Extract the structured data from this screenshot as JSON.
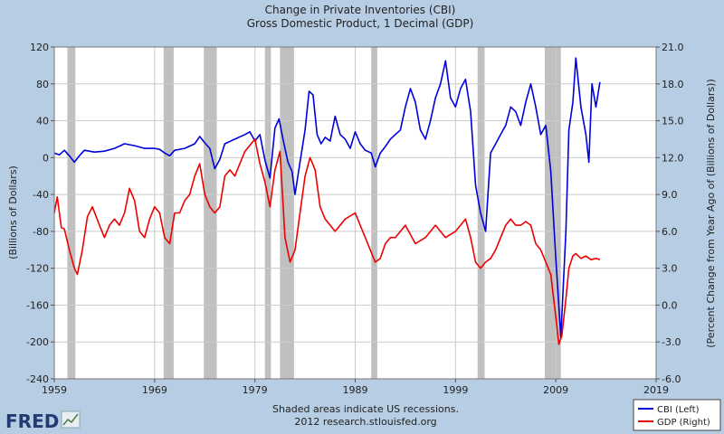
{
  "chart_data": {
    "type": "line",
    "title": "Change in Private Inventories (CBI)",
    "subtitle": "Gross Domestic Product, 1 Decimal (GDP)",
    "ylabel_left": "(Billions of Dollars)",
    "ylabel_right": "(Percent Change from Year Ago of (Billions of Dollars))",
    "xlim": [
      1959,
      2019
    ],
    "ylim_left": [
      -240,
      120
    ],
    "ylim_right": [
      -6.0,
      21.0
    ],
    "x_ticks": [
      "1959",
      "1969",
      "1979",
      "1989",
      "1999",
      "2009",
      "2019"
    ],
    "y_ticks_left": [
      "120",
      "80",
      "40",
      "0",
      "-40",
      "-80",
      "-120",
      "-160",
      "-200",
      "-240"
    ],
    "y_ticks_right": [
      "21.0",
      "18.0",
      "15.0",
      "12.0",
      "9.0",
      "6.0",
      "3.0",
      "0.0",
      "-3.0",
      "-6.0"
    ],
    "recessions": [
      [
        1960.3,
        1961.1
      ],
      [
        1969.9,
        1970.9
      ],
      [
        1973.9,
        1975.2
      ],
      [
        1980.0,
        1980.6
      ],
      [
        1981.5,
        1982.9
      ],
      [
        1990.6,
        1991.2
      ],
      [
        2001.2,
        2001.9
      ],
      [
        2007.9,
        2009.5
      ]
    ],
    "series": [
      {
        "name": "CBI (Left)",
        "color": "#0000dd",
        "points": [
          [
            1959.0,
            5
          ],
          [
            1959.5,
            3
          ],
          [
            1960.0,
            8
          ],
          [
            1960.5,
            2
          ],
          [
            1961.0,
            -5
          ],
          [
            1961.5,
            2
          ],
          [
            1962.0,
            8
          ],
          [
            1963.0,
            6
          ],
          [
            1964.0,
            7
          ],
          [
            1965.0,
            10
          ],
          [
            1966.0,
            15
          ],
          [
            1967.0,
            13
          ],
          [
            1968.0,
            10
          ],
          [
            1969.0,
            10
          ],
          [
            1969.5,
            9
          ],
          [
            1970.0,
            5
          ],
          [
            1970.5,
            2
          ],
          [
            1971.0,
            8
          ],
          [
            1972.0,
            10
          ],
          [
            1973.0,
            15
          ],
          [
            1973.5,
            23
          ],
          [
            1974.0,
            16
          ],
          [
            1974.5,
            10
          ],
          [
            1975.0,
            -12
          ],
          [
            1975.5,
            -2
          ],
          [
            1976.0,
            15
          ],
          [
            1977.0,
            20
          ],
          [
            1978.0,
            25
          ],
          [
            1978.5,
            28
          ],
          [
            1979.0,
            18
          ],
          [
            1979.5,
            25
          ],
          [
            1980.0,
            -3
          ],
          [
            1980.5,
            -22
          ],
          [
            1981.0,
            32
          ],
          [
            1981.4,
            42
          ],
          [
            1981.8,
            20
          ],
          [
            1982.3,
            -5
          ],
          [
            1982.7,
            -15
          ],
          [
            1983.0,
            -40
          ],
          [
            1983.5,
            -5
          ],
          [
            1984.0,
            30
          ],
          [
            1984.4,
            72
          ],
          [
            1984.8,
            68
          ],
          [
            1985.2,
            25
          ],
          [
            1985.6,
            15
          ],
          [
            1986.0,
            22
          ],
          [
            1986.5,
            18
          ],
          [
            1987.0,
            45
          ],
          [
            1987.5,
            25
          ],
          [
            1988.0,
            20
          ],
          [
            1988.5,
            10
          ],
          [
            1989.0,
            28
          ],
          [
            1989.5,
            15
          ],
          [
            1990.0,
            8
          ],
          [
            1990.6,
            5
          ],
          [
            1991.0,
            -10
          ],
          [
            1991.5,
            5
          ],
          [
            1992.0,
            12
          ],
          [
            1992.5,
            20
          ],
          [
            1993.0,
            25
          ],
          [
            1993.5,
            30
          ],
          [
            1994.0,
            55
          ],
          [
            1994.5,
            75
          ],
          [
            1995.0,
            60
          ],
          [
            1995.5,
            30
          ],
          [
            1996.0,
            20
          ],
          [
            1996.5,
            40
          ],
          [
            1997.0,
            65
          ],
          [
            1997.5,
            80
          ],
          [
            1998.0,
            105
          ],
          [
            1998.5,
            65
          ],
          [
            1999.0,
            55
          ],
          [
            1999.5,
            75
          ],
          [
            2000.0,
            85
          ],
          [
            2000.5,
            50
          ],
          [
            2001.0,
            -30
          ],
          [
            2001.5,
            -60
          ],
          [
            2002.0,
            -80
          ],
          [
            2002.5,
            5
          ],
          [
            2003.0,
            15
          ],
          [
            2003.5,
            25
          ],
          [
            2004.0,
            35
          ],
          [
            2004.5,
            55
          ],
          [
            2005.0,
            50
          ],
          [
            2005.5,
            35
          ],
          [
            2006.0,
            60
          ],
          [
            2006.5,
            80
          ],
          [
            2007.0,
            55
          ],
          [
            2007.5,
            25
          ],
          [
            2008.0,
            35
          ],
          [
            2008.5,
            -15
          ],
          [
            2009.0,
            -110
          ],
          [
            2009.5,
            -195
          ],
          [
            2010.0,
            -80
          ],
          [
            2010.3,
            30
          ],
          [
            2010.7,
            60
          ],
          [
            2011.0,
            108
          ],
          [
            2011.5,
            55
          ],
          [
            2012.0,
            25
          ],
          [
            2012.3,
            -5
          ],
          [
            2012.6,
            80
          ],
          [
            2013.0,
            55
          ],
          [
            2013.4,
            82
          ]
        ]
      },
      {
        "name": "GDP (Right)",
        "color": "#ee0000",
        "points": [
          [
            1959.0,
            7.5
          ],
          [
            1959.3,
            8.8
          ],
          [
            1959.7,
            6.3
          ],
          [
            1960.0,
            6.2
          ],
          [
            1960.5,
            4.5
          ],
          [
            1961.0,
            3.0
          ],
          [
            1961.3,
            2.5
          ],
          [
            1961.8,
            4.5
          ],
          [
            1962.3,
            7.2
          ],
          [
            1962.8,
            8.0
          ],
          [
            1963.5,
            6.5
          ],
          [
            1964.0,
            5.5
          ],
          [
            1964.5,
            6.5
          ],
          [
            1965.0,
            7.0
          ],
          [
            1965.5,
            6.5
          ],
          [
            1966.0,
            7.5
          ],
          [
            1966.5,
            9.5
          ],
          [
            1967.0,
            8.5
          ],
          [
            1967.5,
            6.0
          ],
          [
            1968.0,
            5.5
          ],
          [
            1968.5,
            7.0
          ],
          [
            1969.0,
            8.0
          ],
          [
            1969.5,
            7.5
          ],
          [
            1970.0,
            5.5
          ],
          [
            1970.5,
            5.0
          ],
          [
            1971.0,
            7.5
          ],
          [
            1971.5,
            7.5
          ],
          [
            1972.0,
            8.5
          ],
          [
            1972.5,
            9.0
          ],
          [
            1973.0,
            10.5
          ],
          [
            1973.5,
            11.5
          ],
          [
            1974.0,
            9.0
          ],
          [
            1974.5,
            8.0
          ],
          [
            1975.0,
            7.5
          ],
          [
            1975.5,
            8.0
          ],
          [
            1976.0,
            10.5
          ],
          [
            1976.5,
            11.0
          ],
          [
            1977.0,
            10.5
          ],
          [
            1977.5,
            11.5
          ],
          [
            1978.0,
            12.5
          ],
          [
            1978.5,
            13.0
          ],
          [
            1979.0,
            13.5
          ],
          [
            1979.5,
            11.5
          ],
          [
            1980.0,
            10.0
          ],
          [
            1980.5,
            8.0
          ],
          [
            1981.0,
            11.0
          ],
          [
            1981.5,
            12.5
          ],
          [
            1982.0,
            5.5
          ],
          [
            1982.5,
            3.5
          ],
          [
            1983.0,
            4.5
          ],
          [
            1983.5,
            7.5
          ],
          [
            1984.0,
            10.5
          ],
          [
            1984.5,
            12.0
          ],
          [
            1985.0,
            11.0
          ],
          [
            1985.5,
            8.0
          ],
          [
            1986.0,
            7.0
          ],
          [
            1987.0,
            6.0
          ],
          [
            1988.0,
            7.0
          ],
          [
            1989.0,
            7.5
          ],
          [
            1989.5,
            6.5
          ],
          [
            1990.0,
            5.5
          ],
          [
            1990.5,
            4.5
          ],
          [
            1991.0,
            3.5
          ],
          [
            1991.5,
            3.8
          ],
          [
            1992.0,
            5.0
          ],
          [
            1992.5,
            5.5
          ],
          [
            1993.0,
            5.5
          ],
          [
            1994.0,
            6.5
          ],
          [
            1995.0,
            5.0
          ],
          [
            1996.0,
            5.5
          ],
          [
            1997.0,
            6.5
          ],
          [
            1998.0,
            5.5
          ],
          [
            1999.0,
            6.0
          ],
          [
            1999.5,
            6.5
          ],
          [
            2000.0,
            7.0
          ],
          [
            2000.5,
            5.5
          ],
          [
            2001.0,
            3.5
          ],
          [
            2001.5,
            3.0
          ],
          [
            2002.0,
            3.5
          ],
          [
            2002.5,
            3.8
          ],
          [
            2003.0,
            4.5
          ],
          [
            2003.5,
            5.5
          ],
          [
            2004.0,
            6.5
          ],
          [
            2004.5,
            7.0
          ],
          [
            2005.0,
            6.5
          ],
          [
            2005.5,
            6.5
          ],
          [
            2006.0,
            6.8
          ],
          [
            2006.5,
            6.5
          ],
          [
            2007.0,
            5.0
          ],
          [
            2007.5,
            4.5
          ],
          [
            2008.0,
            3.5
          ],
          [
            2008.5,
            2.5
          ],
          [
            2009.0,
            -1.0
          ],
          [
            2009.3,
            -3.2
          ],
          [
            2009.6,
            -2.5
          ],
          [
            2010.0,
            0.5
          ],
          [
            2010.3,
            3.0
          ],
          [
            2010.7,
            4.0
          ],
          [
            2011.0,
            4.2
          ],
          [
            2011.5,
            3.8
          ],
          [
            2012.0,
            4.0
          ],
          [
            2012.5,
            3.7
          ],
          [
            2013.0,
            3.8
          ],
          [
            2013.4,
            3.7
          ]
        ]
      }
    ],
    "legend": [
      "CBI (Left)",
      "GDP (Right)"
    ],
    "legend_position": "bottom-right"
  },
  "footer": {
    "line1": "Shaded areas indicate US recessions.",
    "line2": "2012 research.stlouisfed.org"
  },
  "logo": {
    "text": "FRED"
  },
  "colors": {
    "background": "#b6cde3",
    "plot_bg": "#ffffff",
    "recession": "#c0c0c0",
    "grid": "#cccccc"
  }
}
